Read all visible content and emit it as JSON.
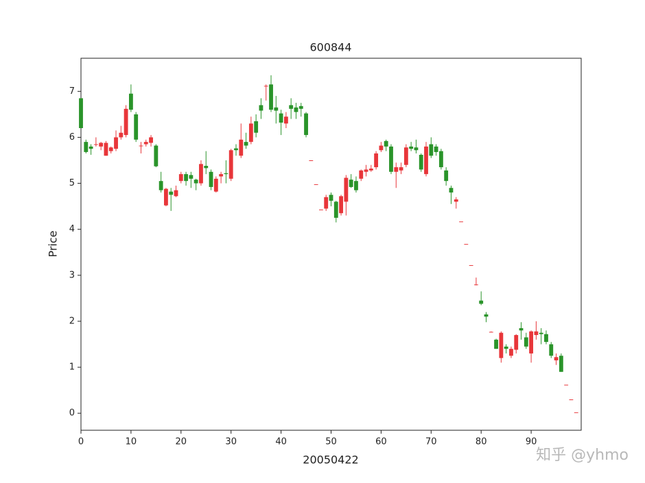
{
  "chart_data": {
    "type": "candlestick",
    "title": "600844",
    "x_label": "20050422",
    "y_label": "Price",
    "up_color": "#e8363a",
    "down_color": "#2a942a",
    "x": [
      0,
      1,
      2,
      3,
      4,
      5,
      6,
      7,
      8,
      9,
      10,
      11,
      12,
      13,
      14,
      15,
      16,
      17,
      18,
      19,
      20,
      21,
      22,
      23,
      24,
      25,
      26,
      27,
      28,
      29,
      30,
      31,
      32,
      33,
      34,
      35,
      36,
      37,
      38,
      39,
      40,
      41,
      42,
      43,
      44,
      45,
      46,
      47,
      48,
      49,
      50,
      51,
      52,
      53,
      54,
      55,
      56,
      57,
      58,
      59,
      60,
      61,
      62,
      63,
      64,
      65,
      66,
      67,
      68,
      69,
      70,
      71,
      72,
      73,
      74,
      75,
      76,
      77,
      78,
      79,
      80,
      81,
      82,
      83,
      84,
      85,
      86,
      87,
      88,
      89,
      90,
      91,
      92,
      93,
      94,
      95,
      96,
      97,
      98,
      99
    ],
    "open": [
      6.85,
      5.9,
      5.8,
      5.85,
      5.8,
      5.6,
      5.7,
      5.75,
      6.0,
      6.05,
      6.95,
      6.5,
      5.82,
      5.85,
      5.88,
      5.82,
      5.05,
      4.52,
      4.82,
      4.72,
      5.05,
      5.2,
      5.18,
      5.08,
      5.0,
      5.38,
      5.25,
      4.82,
      5.15,
      5.22,
      5.1,
      5.76,
      5.6,
      5.9,
      5.9,
      6.35,
      6.7,
      7.12,
      7.15,
      6.65,
      6.52,
      6.3,
      6.7,
      6.65,
      6.68,
      6.52,
      5.5,
      4.98,
      4.43,
      4.45,
      4.75,
      4.6,
      4.35,
      4.6,
      5.08,
      5.05,
      5.1,
      5.25,
      5.28,
      5.35,
      5.72,
      5.92,
      5.8,
      5.25,
      5.28,
      5.4,
      5.8,
      5.78,
      5.62,
      5.2,
      5.85,
      5.8,
      5.7,
      5.28,
      4.9,
      4.6,
      4.17,
      3.68,
      3.22,
      2.8,
      2.45,
      2.15,
      1.77,
      1.6,
      1.2,
      1.45,
      1.25,
      1.38,
      1.85,
      1.65,
      1.3,
      1.7,
      1.75,
      1.72,
      1.5,
      1.15,
      1.25,
      0.62,
      0.3,
      0.02
    ],
    "high": [
      6.85,
      5.95,
      5.85,
      6.0,
      5.9,
      5.92,
      5.8,
      6.15,
      6.25,
      6.7,
      7.15,
      6.55,
      5.9,
      5.95,
      6.05,
      5.85,
      5.25,
      4.9,
      4.9,
      4.95,
      5.25,
      5.25,
      5.25,
      5.1,
      5.5,
      5.7,
      5.3,
      5.15,
      5.25,
      5.5,
      5.75,
      5.85,
      6.3,
      6.1,
      6.45,
      6.5,
      6.85,
      7.15,
      7.35,
      6.9,
      6.6,
      6.55,
      6.85,
      6.75,
      6.75,
      6.55,
      5.5,
      4.98,
      4.43,
      4.75,
      4.8,
      4.62,
      4.75,
      5.18,
      5.2,
      5.15,
      5.3,
      5.4,
      5.4,
      5.7,
      5.9,
      5.95,
      5.85,
      5.45,
      5.45,
      5.85,
      5.9,
      5.95,
      5.65,
      5.9,
      6.0,
      5.85,
      5.75,
      5.35,
      4.95,
      4.7,
      4.17,
      3.68,
      3.22,
      2.95,
      2.65,
      2.2,
      1.78,
      1.62,
      1.78,
      1.5,
      1.45,
      1.72,
      1.98,
      1.75,
      1.8,
      2.0,
      1.85,
      1.8,
      1.55,
      1.3,
      1.3,
      0.62,
      0.3,
      0.02
    ],
    "low": [
      6.2,
      5.65,
      5.62,
      5.8,
      5.72,
      5.6,
      5.65,
      5.7,
      5.95,
      6.0,
      6.55,
      5.9,
      5.65,
      5.8,
      5.8,
      5.35,
      4.8,
      4.5,
      4.4,
      4.7,
      5.0,
      4.95,
      4.9,
      4.85,
      4.95,
      5.2,
      4.85,
      4.8,
      5.0,
      5.0,
      5.05,
      5.6,
      5.55,
      5.75,
      5.85,
      6.0,
      6.4,
      6.8,
      6.55,
      6.3,
      6.05,
      6.2,
      6.4,
      6.4,
      6.45,
      6.0,
      5.5,
      4.98,
      4.43,
      4.4,
      4.5,
      4.15,
      4.3,
      4.3,
      4.9,
      4.8,
      5.05,
      5.15,
      5.25,
      5.3,
      5.68,
      5.7,
      5.2,
      4.9,
      5.2,
      5.35,
      5.7,
      5.65,
      5.25,
      5.15,
      5.55,
      5.6,
      5.3,
      4.95,
      4.55,
      4.45,
      4.17,
      3.68,
      3.22,
      2.78,
      2.35,
      1.98,
      1.77,
      1.4,
      1.1,
      1.3,
      1.2,
      1.3,
      1.6,
      1.4,
      1.1,
      1.6,
      1.5,
      1.5,
      1.2,
      1.05,
      0.9,
      0.62,
      0.3,
      0.02
    ],
    "close": [
      6.2,
      5.68,
      5.75,
      5.85,
      5.88,
      5.88,
      5.78,
      6.0,
      6.1,
      6.62,
      6.6,
      5.95,
      5.82,
      5.9,
      6.0,
      5.37,
      4.85,
      4.88,
      4.75,
      4.85,
      5.2,
      5.05,
      5.1,
      5.0,
      5.42,
      5.33,
      4.92,
      5.1,
      5.2,
      5.2,
      5.72,
      5.72,
      5.95,
      5.82,
      6.3,
      6.1,
      6.58,
      7.12,
      6.6,
      6.58,
      6.32,
      6.45,
      6.62,
      6.55,
      6.62,
      6.05,
      5.5,
      4.98,
      4.43,
      4.7,
      4.62,
      4.25,
      4.72,
      5.12,
      4.92,
      4.85,
      5.28,
      5.3,
      5.32,
      5.65,
      5.82,
      5.8,
      5.25,
      5.35,
      5.35,
      5.78,
      5.75,
      5.72,
      5.3,
      5.8,
      5.6,
      5.68,
      5.35,
      5.05,
      4.8,
      4.65,
      4.17,
      3.68,
      3.22,
      2.8,
      2.38,
      2.1,
      1.77,
      1.4,
      1.75,
      1.4,
      1.4,
      1.7,
      1.8,
      1.45,
      1.78,
      1.78,
      1.72,
      1.55,
      1.25,
      1.22,
      0.9,
      0.62,
      0.3,
      0.02
    ],
    "xlim": [
      0,
      100
    ],
    "ylim": [
      -0.37,
      7.72
    ],
    "xticks": [
      0,
      10,
      20,
      30,
      40,
      50,
      60,
      70,
      80,
      90
    ],
    "yticks": [
      0,
      1,
      2,
      3,
      4,
      5,
      6,
      7
    ]
  },
  "watermark": "知乎 @yhmo"
}
